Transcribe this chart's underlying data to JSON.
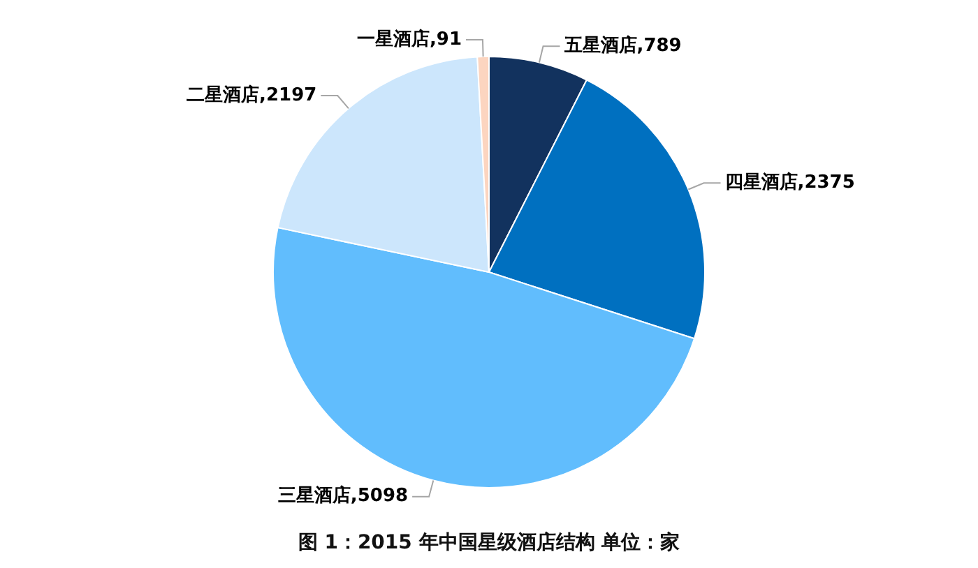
{
  "chart_data": {
    "type": "pie",
    "title": "图 1：2015 年中国星级酒店结构   单位：家",
    "categories": [
      "五星酒店",
      "四星酒店",
      "三星酒店",
      "二星酒店",
      "一星酒店"
    ],
    "values": [
      789,
      2375,
      5098,
      2197,
      91
    ],
    "colors": [
      "#12325e",
      "#0070c0",
      "#61bdfd",
      "#cce6fc",
      "#fcd5c0"
    ],
    "value_labels": [
      ",789",
      ",2375",
      ",5098",
      ",2197",
      ",91"
    ],
    "legend": false
  }
}
